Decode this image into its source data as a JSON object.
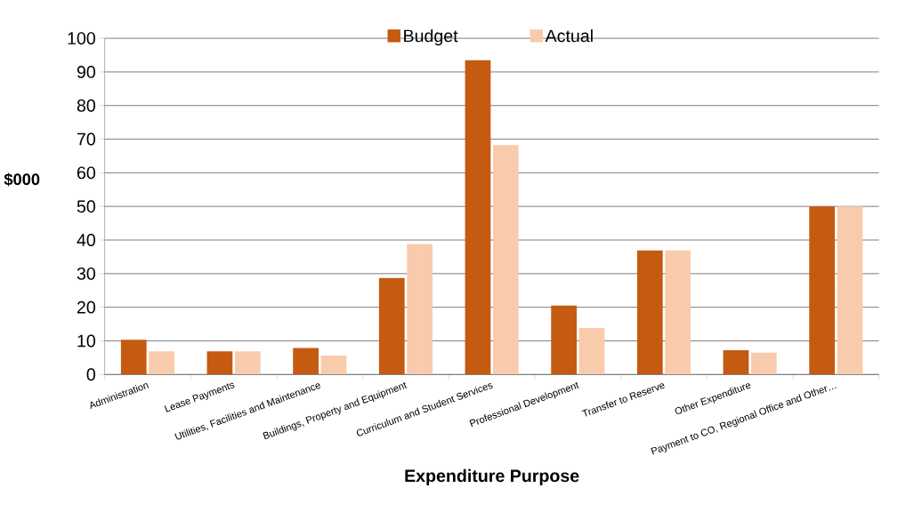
{
  "chart_data": {
    "type": "bar",
    "xlabel": "Expenditure Purpose",
    "ylabel": "$000",
    "categories": [
      "Administration",
      "Lease Payments",
      "Utilities, Facilities and Maintenance",
      "Buildings, Property and Equipment",
      "Curriculum and Student Services",
      "Professional Development",
      "Transfer to Reserve",
      "Other Expenditure",
      "Payment to CO, Regional Office and Other…"
    ],
    "series": [
      {
        "name": "Budget",
        "color": "#c55a11",
        "values": [
          10.3,
          6.9,
          7.9,
          28.7,
          93.5,
          20.5,
          36.9,
          7.2,
          50
        ]
      },
      {
        "name": "Actual",
        "color": "#f8cbad",
        "values": [
          6.9,
          6.9,
          5.6,
          38.8,
          68.2,
          13.8,
          36.9,
          6.5,
          50
        ]
      }
    ],
    "ylim": [
      0,
      100
    ],
    "yticks": [
      0,
      10,
      20,
      30,
      40,
      50,
      60,
      70,
      80,
      90,
      100
    ],
    "grid": "y",
    "legend": "top"
  }
}
